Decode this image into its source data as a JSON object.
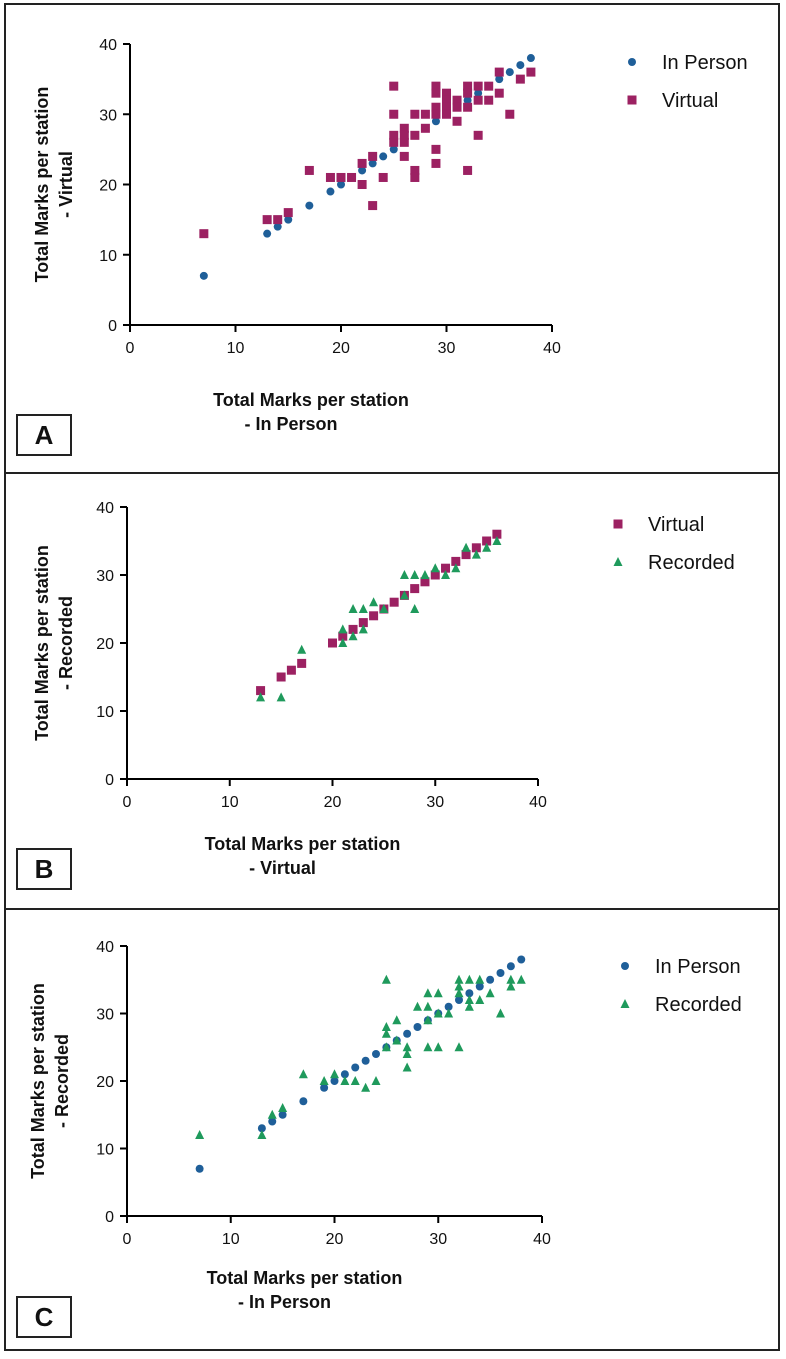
{
  "figure": {
    "panel_labels": [
      "A",
      "B",
      "C"
    ]
  },
  "colors": {
    "in_person": "#1f5f99",
    "virtual": "#9c2162",
    "recorded": "#1f9a5c",
    "axis": "#000000"
  },
  "chart_data": [
    {
      "type": "scatter",
      "panel": "A",
      "xlabel": [
        "Total Marks per station",
        "- In Person"
      ],
      "ylabel": [
        "Total Marks per station",
        "- Virtual"
      ],
      "xlim": [
        0,
        40
      ],
      "ylim": [
        0,
        40
      ],
      "xticks": [
        0,
        10,
        20,
        30,
        40
      ],
      "yticks": [
        0,
        10,
        20,
        30,
        40
      ],
      "legend_position": "top-right",
      "series": [
        {
          "name": "In Person",
          "marker": "circle",
          "color": "#1f5f99",
          "x": [
            7,
            13,
            14,
            15,
            17,
            19,
            20,
            21,
            22,
            23,
            24,
            25,
            26,
            27,
            28,
            29,
            30,
            31,
            32,
            33,
            34,
            35,
            36,
            37,
            38
          ],
          "y": [
            7,
            13,
            14,
            15,
            17,
            19,
            20,
            21,
            22,
            23,
            24,
            25,
            26,
            27,
            28,
            29,
            30,
            31,
            32,
            33,
            34,
            35,
            36,
            37,
            38
          ]
        },
        {
          "name": "Virtual",
          "marker": "square",
          "color": "#9c2162",
          "x": [
            7,
            13,
            14,
            15,
            17,
            19,
            20,
            21,
            22,
            22,
            23,
            23,
            24,
            25,
            25,
            25,
            25,
            26,
            26,
            26,
            26,
            27,
            27,
            27,
            27,
            28,
            28,
            29,
            29,
            29,
            29,
            29,
            29,
            30,
            30,
            30,
            30,
            31,
            31,
            31,
            32,
            32,
            32,
            32,
            33,
            33,
            33,
            34,
            34,
            35,
            35,
            36,
            37,
            38
          ],
          "y": [
            13,
            15,
            15,
            16,
            22,
            21,
            21,
            21,
            20,
            23,
            17,
            24,
            21,
            34,
            30,
            27,
            26,
            28,
            27,
            26,
            24,
            22,
            21,
            27,
            30,
            28,
            30,
            34,
            33,
            31,
            30,
            25,
            23,
            33,
            32,
            31,
            30,
            32,
            31,
            29,
            34,
            33,
            31,
            22,
            34,
            32,
            27,
            34,
            32,
            36,
            33,
            30,
            35,
            36
          ]
        }
      ]
    },
    {
      "type": "scatter",
      "panel": "B",
      "xlabel": [
        "Total Marks per station",
        "- Virtual"
      ],
      "ylabel": [
        "Total Marks per station",
        "- Recorded"
      ],
      "xlim": [
        0,
        40
      ],
      "ylim": [
        0,
        40
      ],
      "xticks": [
        0,
        10,
        20,
        30,
        40
      ],
      "yticks": [
        0,
        10,
        20,
        30,
        40
      ],
      "legend_position": "top-right",
      "series": [
        {
          "name": "Virtual",
          "marker": "square",
          "color": "#9c2162",
          "x": [
            13,
            15,
            16,
            17,
            20,
            21,
            22,
            23,
            24,
            25,
            26,
            27,
            28,
            29,
            30,
            31,
            32,
            33,
            34,
            35,
            36
          ],
          "y": [
            13,
            15,
            16,
            17,
            20,
            21,
            22,
            23,
            24,
            25,
            26,
            27,
            28,
            29,
            30,
            31,
            32,
            33,
            34,
            35,
            36
          ]
        },
        {
          "name": "Recorded",
          "marker": "triangle",
          "color": "#1f9a5c",
          "x": [
            13,
            15,
            17,
            21,
            21,
            22,
            22,
            23,
            23,
            24,
            25,
            27,
            27,
            28,
            28,
            29,
            30,
            31,
            32,
            33,
            34,
            35,
            36
          ],
          "y": [
            12,
            12,
            19,
            20,
            22,
            21,
            25,
            22,
            25,
            26,
            25,
            30,
            27,
            30,
            25,
            30,
            31,
            30,
            31,
            34,
            33,
            34,
            35
          ]
        }
      ]
    },
    {
      "type": "scatter",
      "panel": "C",
      "xlabel": [
        "Total Marks per station",
        "- In Person"
      ],
      "ylabel": [
        "Total Marks per station",
        "- Recorded"
      ],
      "xlim": [
        0,
        40
      ],
      "ylim": [
        0,
        40
      ],
      "xticks": [
        0,
        10,
        20,
        30,
        40
      ],
      "yticks": [
        0,
        10,
        20,
        30,
        40
      ],
      "legend_position": "top-right",
      "series": [
        {
          "name": "In Person",
          "marker": "circle",
          "color": "#1f5f99",
          "x": [
            7,
            13,
            14,
            15,
            17,
            19,
            20,
            21,
            22,
            23,
            24,
            25,
            26,
            27,
            28,
            29,
            30,
            31,
            32,
            33,
            34,
            35,
            36,
            37,
            38
          ],
          "y": [
            7,
            13,
            14,
            15,
            17,
            19,
            20,
            21,
            22,
            23,
            24,
            25,
            26,
            27,
            28,
            29,
            30,
            31,
            32,
            33,
            34,
            35,
            36,
            37,
            38
          ]
        },
        {
          "name": "Recorded",
          "marker": "triangle",
          "color": "#1f9a5c",
          "x": [
            7,
            13,
            14,
            15,
            17,
            19,
            20,
            21,
            22,
            23,
            24,
            25,
            25,
            25,
            25,
            26,
            26,
            27,
            27,
            27,
            28,
            29,
            29,
            29,
            29,
            30,
            30,
            30,
            31,
            32,
            32,
            32,
            32,
            33,
            33,
            33,
            34,
            34,
            35,
            36,
            37,
            37,
            38
          ],
          "y": [
            12,
            12,
            15,
            16,
            21,
            20,
            21,
            20,
            20,
            19,
            20,
            35,
            28,
            27,
            25,
            29,
            26,
            25,
            24,
            22,
            31,
            33,
            31,
            29,
            25,
            33,
            30,
            25,
            30,
            35,
            34,
            33,
            25,
            35,
            32,
            31,
            35,
            32,
            33,
            30,
            35,
            34,
            35
          ]
        }
      ]
    }
  ]
}
